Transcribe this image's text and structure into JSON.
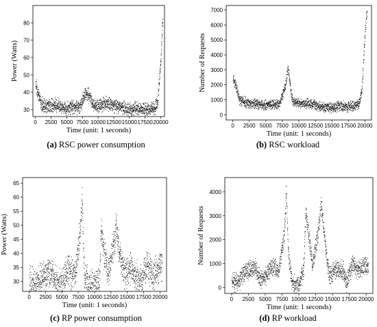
{
  "chart_data": [
    {
      "type": "scatter",
      "caption_letter": "(a)",
      "caption_text": " RSC power consumption",
      "xlabel": "Time (unit: 1 seconds)",
      "ylabel": "Power (Watts)",
      "xlim": [
        -400,
        20600
      ],
      "ylim": [
        26,
        90
      ],
      "x_ticks": [
        0,
        2500,
        5000,
        7500,
        10000,
        12500,
        15000,
        17500,
        20000
      ],
      "y_ticks": [
        30,
        40,
        50,
        60,
        70,
        80
      ],
      "point_color": "#000000",
      "baseline_profile": [
        [
          0,
          45
        ],
        [
          500,
          38
        ],
        [
          1000,
          33
        ],
        [
          2000,
          32
        ],
        [
          3000,
          33
        ],
        [
          4000,
          32
        ],
        [
          5000,
          31
        ],
        [
          6000,
          32
        ],
        [
          7000,
          31
        ],
        [
          8000,
          40
        ],
        [
          8600,
          38
        ],
        [
          9200,
          33
        ],
        [
          10000,
          32
        ],
        [
          11000,
          34
        ],
        [
          12000,
          33
        ],
        [
          13000,
          32
        ],
        [
          14000,
          31
        ],
        [
          15000,
          30
        ],
        [
          16000,
          31
        ],
        [
          17000,
          30
        ],
        [
          18000,
          31
        ],
        [
          19000,
          31
        ],
        [
          19500,
          35
        ],
        [
          20000,
          60
        ],
        [
          20300,
          84
        ]
      ],
      "spread": 3.5
    },
    {
      "type": "scatter",
      "caption_letter": "(b)",
      "caption_text": " RSC workload",
      "xlabel": "Time (unit: 1 seconds)",
      "ylabel": "Number of Requests",
      "xlim": [
        -1000,
        21000
      ],
      "ylim": [
        -350,
        7300
      ],
      "x_ticks": [
        0,
        2500,
        5000,
        7500,
        10000,
        12500,
        15000,
        17500,
        20000
      ],
      "y_ticks": [
        0,
        1000,
        2000,
        3000,
        4000,
        5000,
        6000,
        7000
      ],
      "point_color": "#000000",
      "baseline_profile": [
        [
          0,
          2500
        ],
        [
          500,
          1800
        ],
        [
          1000,
          1000
        ],
        [
          2000,
          800
        ],
        [
          3000,
          750
        ],
        [
          4000,
          700
        ],
        [
          5000,
          650
        ],
        [
          6000,
          750
        ],
        [
          7000,
          650
        ],
        [
          8000,
          2000
        ],
        [
          8300,
          3200
        ],
        [
          8600,
          2200
        ],
        [
          9000,
          900
        ],
        [
          10000,
          800
        ],
        [
          11000,
          800
        ],
        [
          12000,
          750
        ],
        [
          13000,
          600
        ],
        [
          14000,
          500
        ],
        [
          15000,
          450
        ],
        [
          16000,
          600
        ],
        [
          17000,
          600
        ],
        [
          18000,
          550
        ],
        [
          19000,
          700
        ],
        [
          19500,
          1500
        ],
        [
          20000,
          5500
        ],
        [
          20300,
          7000
        ]
      ],
      "spread": 300
    },
    {
      "type": "scatter",
      "caption_letter": "(c)",
      "caption_text": " RP power consumption",
      "xlabel": "Time (unit: 1 seconds)",
      "ylabel": "Power (Watts)",
      "xlim": [
        -1000,
        21000
      ],
      "ylim": [
        26.5,
        67
      ],
      "x_ticks": [
        0,
        2500,
        5000,
        7500,
        10000,
        12500,
        15000,
        17500,
        20000
      ],
      "y_ticks": [
        30,
        35,
        40,
        45,
        50,
        55,
        60,
        65
      ],
      "point_color": "#000000",
      "baseline_profile": [
        [
          0,
          29
        ],
        [
          1000,
          29
        ],
        [
          2500,
          33
        ],
        [
          3500,
          33
        ],
        [
          4200,
          29
        ],
        [
          5000,
          30
        ],
        [
          6000,
          34
        ],
        [
          7000,
          32
        ],
        [
          7800,
          48
        ],
        [
          8100,
          60
        ],
        [
          8400,
          32
        ],
        [
          9000,
          28.5
        ],
        [
          10000,
          28.5
        ],
        [
          10700,
          30
        ],
        [
          11000,
          50
        ],
        [
          11400,
          40
        ],
        [
          12000,
          33
        ],
        [
          12800,
          42
        ],
        [
          13300,
          50
        ],
        [
          13800,
          40
        ],
        [
          14500,
          33
        ],
        [
          15500,
          35
        ],
        [
          16500,
          31
        ],
        [
          17000,
          30
        ],
        [
          18000,
          36
        ],
        [
          18700,
          32
        ],
        [
          19500,
          34
        ],
        [
          20000,
          36
        ]
      ],
      "spread": 5
    },
    {
      "type": "scatter",
      "caption_letter": "(d)",
      "caption_text": " RP workload",
      "xlabel": "Time (unit: 1 seconds)",
      "ylabel": "Number of Requests",
      "xlim": [
        -1000,
        21000
      ],
      "ylim": [
        -250,
        4600
      ],
      "x_ticks": [
        0,
        2500,
        5000,
        7500,
        10000,
        12500,
        15000,
        17500,
        20000
      ],
      "y_ticks": [
        0,
        1000,
        2000,
        3000,
        4000
      ],
      "point_color": "#000000",
      "baseline_profile": [
        [
          0,
          200
        ],
        [
          1000,
          200
        ],
        [
          2000,
          700
        ],
        [
          3500,
          800
        ],
        [
          4200,
          300
        ],
        [
          5000,
          500
        ],
        [
          6000,
          900
        ],
        [
          7000,
          700
        ],
        [
          7800,
          2200
        ],
        [
          8100,
          4000
        ],
        [
          8400,
          1500
        ],
        [
          9000,
          100
        ],
        [
          10000,
          100
        ],
        [
          10700,
          800
        ],
        [
          11000,
          3200
        ],
        [
          11500,
          2000
        ],
        [
          12000,
          1000
        ],
        [
          12800,
          2200
        ],
        [
          13300,
          3500
        ],
        [
          13800,
          2000
        ],
        [
          14500,
          500
        ],
        [
          15500,
          800
        ],
        [
          16500,
          700
        ],
        [
          17000,
          200
        ],
        [
          18000,
          1000
        ],
        [
          18700,
          700
        ],
        [
          19500,
          900
        ],
        [
          20000,
          900
        ]
      ],
      "spread": 350
    }
  ]
}
